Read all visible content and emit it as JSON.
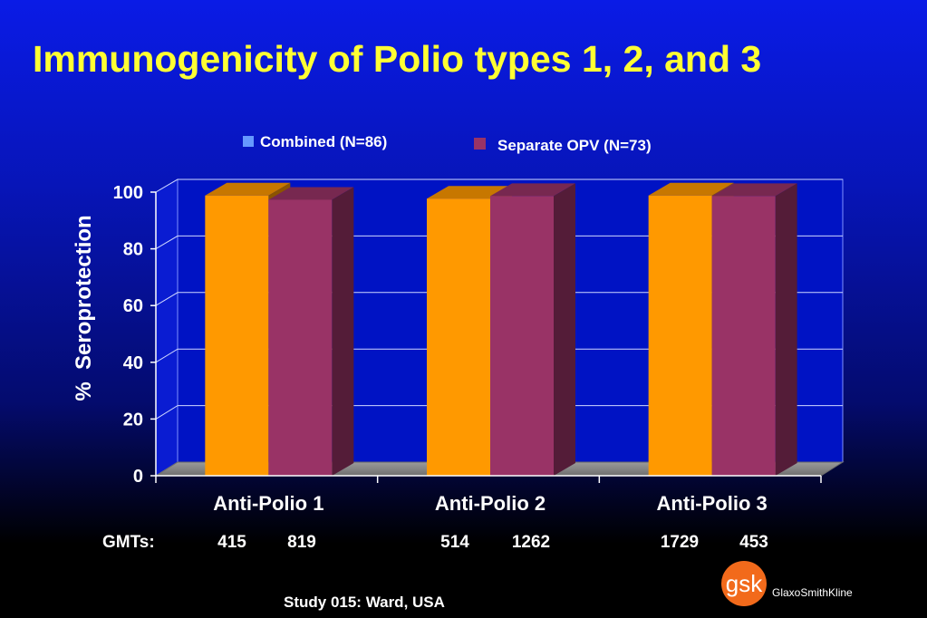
{
  "page": {
    "title": "Immunogenicity of Polio types 1, 2, and 3"
  },
  "chart_data": {
    "type": "bar",
    "categories": [
      "Anti-Polio 1",
      "Anti-Polio 2",
      "Anti-Polio 3"
    ],
    "series": [
      {
        "name": "Combined (N=86)",
        "values": [
          98.8,
          97.7,
          98.8
        ],
        "color": "#ff9900"
      },
      {
        "name": "Separate OPV (N=73)",
        "values": [
          97.3,
          98.6,
          98.6
        ],
        "color": "#993366"
      }
    ],
    "ylabel": "%  Seroprotection",
    "ylim": [
      0,
      100
    ],
    "yticks": [
      0,
      20,
      40,
      60,
      80,
      100
    ],
    "grid": true,
    "legend": "top"
  },
  "gmts": {
    "label": "GMTs:",
    "values": [
      "415",
      "819",
      "514",
      "1262",
      "1729",
      "453"
    ]
  },
  "footer": {
    "study": "Study 015: Ward, USA"
  },
  "logo": {
    "mark": "gsk",
    "company": "GlaxoSmithKline"
  }
}
